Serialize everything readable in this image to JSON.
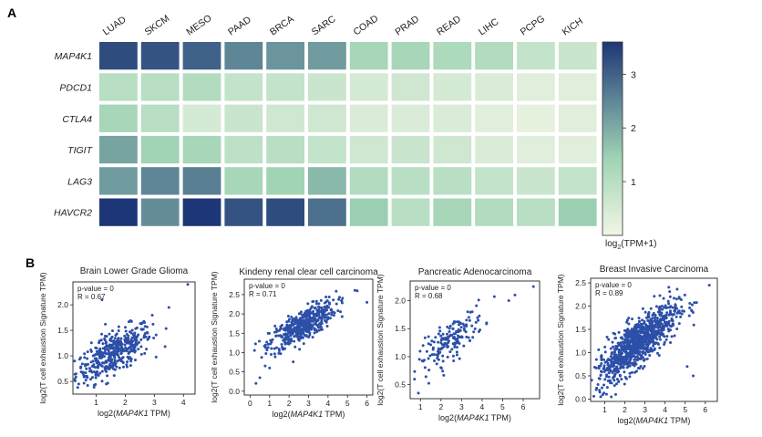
{
  "panels": {
    "a": "A",
    "b": "B"
  },
  "chart_data": [
    {
      "type": "heatmap",
      "columns": [
        "LUAD",
        "SKCM",
        "MESO",
        "PAAD",
        "BRCA",
        "SARC",
        "COAD",
        "PRAD",
        "READ",
        "LIHC",
        "PCPG",
        "KICH"
      ],
      "rows": [
        "MAP4K1",
        "PDCD1",
        "CTLA4",
        "TIGIT",
        "LAG3",
        "HAVCR2"
      ],
      "values": [
        [
          3.3,
          3.2,
          3.0,
          2.5,
          2.3,
          2.2,
          1.3,
          1.3,
          1.2,
          1.1,
          0.8,
          0.7
        ],
        [
          1.0,
          1.0,
          1.1,
          0.8,
          0.8,
          0.7,
          0.5,
          0.6,
          0.5,
          0.4,
          0.3,
          0.3
        ],
        [
          1.3,
          1.0,
          0.5,
          0.7,
          0.6,
          0.6,
          0.4,
          0.4,
          0.4,
          0.3,
          0.2,
          0.3
        ],
        [
          2.1,
          1.4,
          1.3,
          0.9,
          1.0,
          0.8,
          0.6,
          0.7,
          0.6,
          0.4,
          0.3,
          0.3
        ],
        [
          2.2,
          2.5,
          2.6,
          1.3,
          1.4,
          1.8,
          1.1,
          1.0,
          1.0,
          0.8,
          0.7,
          0.8
        ],
        [
          3.7,
          2.4,
          3.8,
          3.2,
          3.3,
          2.8,
          1.5,
          1.0,
          1.3,
          1.1,
          1.0,
          1.5
        ]
      ],
      "colorbar": {
        "ticks": [
          1,
          2,
          3
        ],
        "min": 0,
        "max": 3.6,
        "label": "log2(TPM+1)"
      },
      "colors": {
        "low": "#f1f6e5",
        "mid": "#9fd3b4",
        "high": "#1d3677"
      }
    },
    {
      "type": "scatter",
      "title": "Brain Lower Grade Glioma",
      "xlabel": "log2(MAP4K1 TPM)",
      "ylabel": "log2(T cell exhaustion Signature TPM)",
      "annotation": [
        "p-value = 0",
        "R = 0.67"
      ],
      "xlim": [
        0.2,
        4.4
      ],
      "ylim": [
        0.25,
        2.45
      ],
      "xticks": [
        "1",
        "2",
        "3",
        "4"
      ],
      "yticks": [
        "0.5",
        "1.0",
        "1.5",
        "2.0"
      ],
      "trend": {
        "x0": 1.6,
        "y0": 1.05,
        "slope": 0.3,
        "noise": 0.2
      },
      "n_points": 420,
      "xspread": 0.65,
      "outliers": [
        [
          4.15,
          2.4
        ],
        [
          3.5,
          1.95
        ],
        [
          1.2,
          2.1
        ],
        [
          0.4,
          0.45
        ]
      ]
    },
    {
      "type": "scatter",
      "title": "Kindeny renal clear cell carcinoma",
      "xlabel": "log2(MAP4K1 TPM)",
      "ylabel": "log2(T cell exhaustion Signature TPM)",
      "annotation": [
        "p-value = 0",
        "R = 0.71"
      ],
      "xlim": [
        -0.3,
        6.3
      ],
      "ylim": [
        -0.1,
        2.9
      ],
      "xticks": [
        "0",
        "1",
        "2",
        "3",
        "4",
        "5",
        "6"
      ],
      "yticks": [
        "0.0",
        "0.5",
        "1.0",
        "1.5",
        "2.0",
        "2.5"
      ],
      "trend": {
        "x0": 2.7,
        "y0": 1.7,
        "slope": 0.28,
        "noise": 0.2
      },
      "n_points": 480,
      "xspread": 0.85,
      "outliers": [
        [
          0.3,
          0.2
        ],
        [
          0.5,
          0.35
        ],
        [
          6.0,
          2.3
        ],
        [
          5.5,
          2.6
        ],
        [
          1.0,
          0.6
        ]
      ]
    },
    {
      "type": "scatter",
      "title": "Pancreatic Adenocarcinoma",
      "xlabel": "log2(MAP4K1 TPM)",
      "ylabel": "log2(T cell exhaustion Signature TPM)",
      "annotation": [
        "p-value = 0",
        "R = 0.68"
      ],
      "xlim": [
        0.5,
        6.8
      ],
      "ylim": [
        0.25,
        2.35
      ],
      "xticks": [
        "1",
        "2",
        "3",
        "4",
        "5",
        "6"
      ],
      "yticks": [
        "0.5",
        "1.0",
        "1.5",
        "2.0"
      ],
      "trend": {
        "x0": 2.5,
        "y0": 1.3,
        "slope": 0.27,
        "noise": 0.17
      },
      "n_points": 170,
      "xspread": 0.8,
      "outliers": [
        [
          6.5,
          2.25
        ],
        [
          5.3,
          2.0
        ],
        [
          5.6,
          2.1
        ],
        [
          0.9,
          0.35
        ]
      ]
    },
    {
      "type": "scatter",
      "title": "Breast Invasive Carcinoma",
      "xlabel": "log2(MAP4K1 TPM)",
      "ylabel": "log2(T cell exhaustion Signature TPM)",
      "annotation": [
        "p-value = 0",
        "R = 0.89"
      ],
      "xlim": [
        0.3,
        6.6
      ],
      "ylim": [
        -0.05,
        2.6
      ],
      "xticks": [
        "1",
        "2",
        "3",
        "4",
        "5",
        "6"
      ],
      "yticks": [
        "0.0",
        "0.5",
        "1.0",
        "1.5",
        "2.0",
        "2.5"
      ],
      "trend": {
        "x0": 2.6,
        "y0": 1.2,
        "slope": 0.33,
        "noise": 0.25
      },
      "n_points": 950,
      "xspread": 1.0,
      "outliers": [
        [
          6.2,
          2.45
        ],
        [
          5.1,
          0.7
        ],
        [
          5.4,
          0.5
        ],
        [
          0.8,
          0.05
        ]
      ]
    }
  ]
}
